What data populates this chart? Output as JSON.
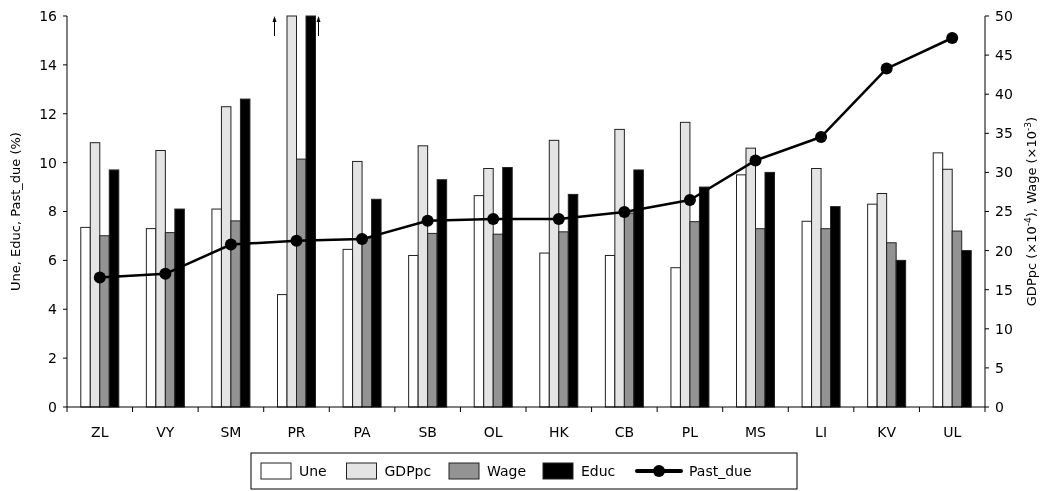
{
  "chart_data": {
    "type": "bar",
    "ylabel": "Une, Educ, Past_due (%)",
    "y2label": "GDPpc (×10$^{-4}$), Wage (×10$^{-3}$)",
    "categories": [
      "ZL",
      "VY",
      "SM",
      "PR",
      "PA",
      "SB",
      "OL",
      "HK",
      "CB",
      "PL",
      "MS",
      "LI",
      "KV",
      "UL"
    ],
    "series": [
      {
        "name": "Une",
        "color": "#ffffff",
        "values": [
          7.35,
          7.3,
          8.1,
          4.6,
          6.45,
          6.2,
          8.65,
          6.3,
          6.2,
          5.7,
          9.5,
          7.6,
          8.3,
          10.4
        ]
      },
      {
        "name": "GDPpc",
        "color": "#e3e4e3",
        "axis": "y2",
        "values": [
          33.8,
          32.8,
          38.4,
          50,
          31.4,
          33.4,
          30.5,
          34.1,
          35.5,
          36.4,
          33.1,
          30.5,
          27.3,
          30.4
        ]
      },
      {
        "name": "Wage",
        "color": "#939393",
        "axis": "y2",
        "values": [
          21.9,
          22.3,
          23.8,
          31.7,
          21.6,
          22.2,
          22.1,
          22.4,
          24.8,
          23.7,
          22.8,
          22.8,
          21,
          22.5
        ]
      },
      {
        "name": "Educ",
        "color": "#000000",
        "values": [
          9.7,
          8.1,
          12.6,
          16,
          8.5,
          9.3,
          9.8,
          8.7,
          9.7,
          9.0,
          9.6,
          8.2,
          6.0,
          6.4
        ]
      },
      {
        "name": "Past_due",
        "type": "line",
        "color": "#000000",
        "marker": "circle",
        "values": [
          5.3,
          5.45,
          6.65,
          6.8,
          6.87,
          7.62,
          7.69,
          7.69,
          7.98,
          8.47,
          10.09,
          11.05,
          13.85,
          15.1
        ]
      }
    ],
    "ylim": [
      0,
      16
    ],
    "yticks": [
      0,
      2,
      4,
      6,
      8,
      10,
      12,
      14,
      16
    ],
    "y2lim": [
      0,
      50
    ],
    "y2ticks": [
      0,
      5,
      10,
      15,
      20,
      25,
      30,
      35,
      40,
      45,
      50
    ],
    "legend": "bottom"
  }
}
